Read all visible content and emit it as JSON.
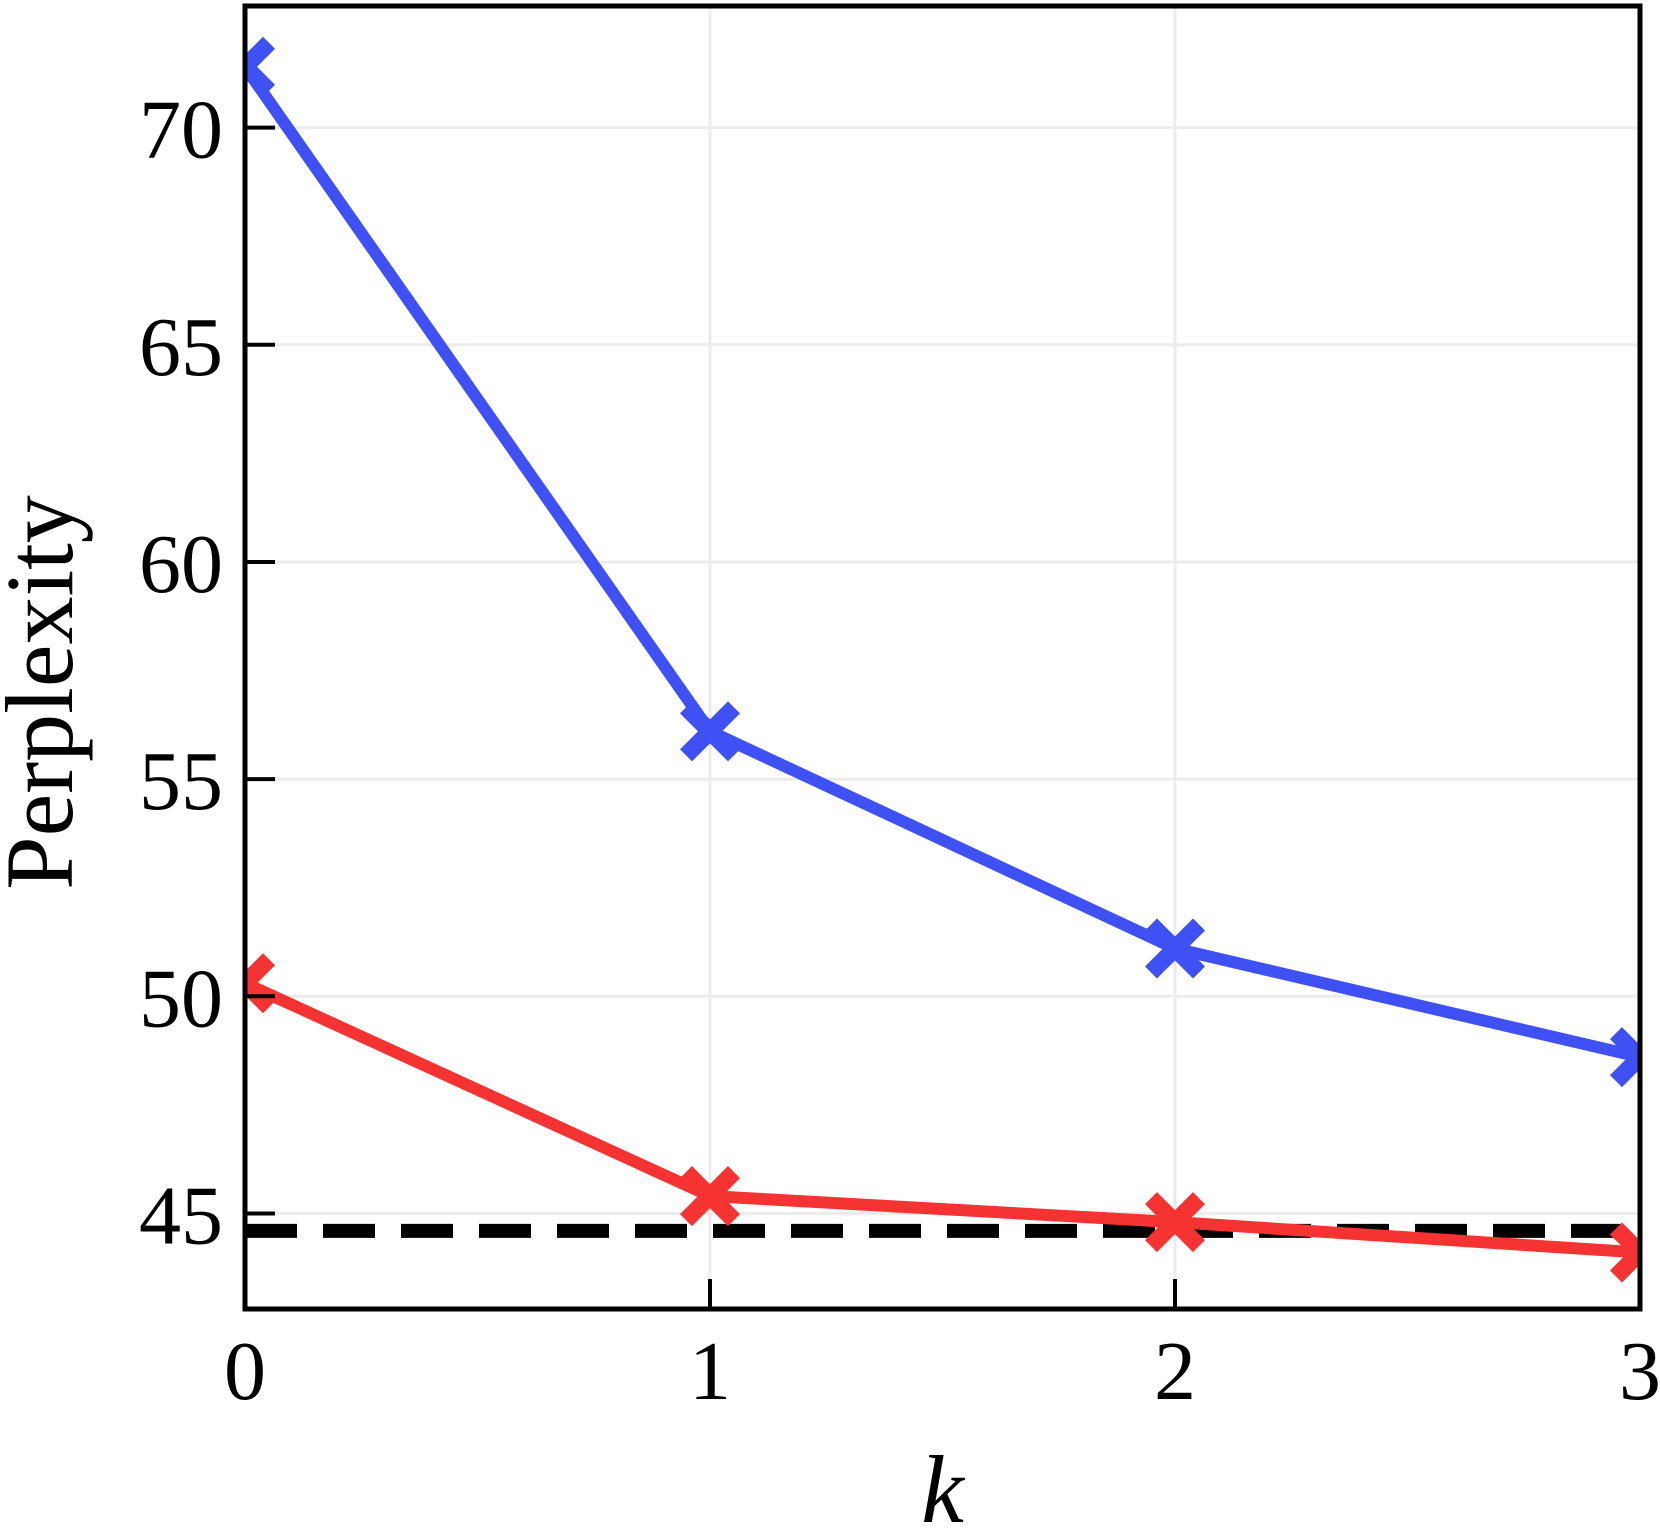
{
  "chart_data": {
    "type": "line",
    "xlabel": "k",
    "ylabel": "Perplexity",
    "xlim": [
      0,
      3
    ],
    "ylim": [
      42.8,
      72.8
    ],
    "xticks": [
      0,
      1,
      2,
      3
    ],
    "yticks": [
      45,
      50,
      55,
      60,
      65,
      70
    ],
    "grid": true,
    "legend": "none",
    "x": [
      0,
      1,
      2,
      3
    ],
    "series": [
      {
        "color": "#3f51f5",
        "marker": "X",
        "values": [
          71.4,
          56.1,
          51.1,
          48.6
        ]
      },
      {
        "color": "#f53333",
        "marker": "X",
        "values": [
          50.3,
          45.4,
          44.8,
          44.1
        ]
      }
    ],
    "reference_line": {
      "y": 44.6,
      "style": "dashed",
      "color": "#000000"
    }
  }
}
